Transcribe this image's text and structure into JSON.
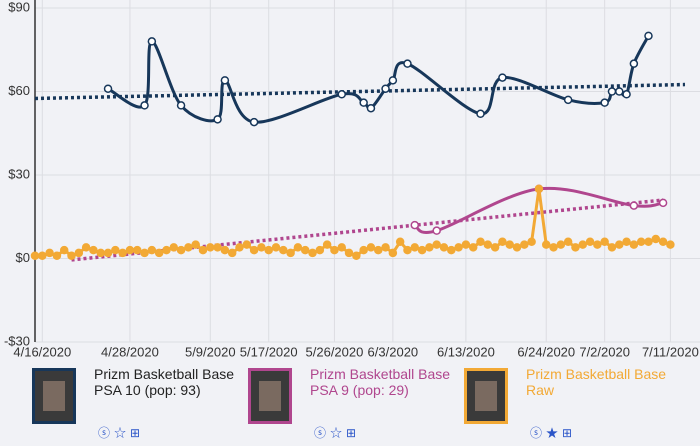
{
  "chart_data": {
    "type": "line",
    "xlim": [
      "2020-04-15",
      "2020-07-13"
    ],
    "xticks": [
      {
        "value": "2020-04-16",
        "label": "4/16/2020"
      },
      {
        "value": "2020-04-28",
        "label": "4/28/2020"
      },
      {
        "value": "2020-05-09",
        "label": "5/9/2020"
      },
      {
        "value": "2020-05-17",
        "label": "5/17/2020"
      },
      {
        "value": "2020-05-26",
        "label": "5/26/2020"
      },
      {
        "value": "2020-06-03",
        "label": "6/3/2020"
      },
      {
        "value": "2020-06-13",
        "label": "6/13/2020"
      },
      {
        "value": "2020-06-24",
        "label": "6/24/2020"
      },
      {
        "value": "2020-07-02",
        "label": "7/2/2020"
      },
      {
        "value": "2020-07-11",
        "label": "7/11/2020"
      }
    ],
    "ylim": [
      -30,
      90
    ],
    "yticks": [
      {
        "value": 90,
        "label": "$90"
      },
      {
        "value": 60,
        "label": "$60"
      },
      {
        "value": 30,
        "label": "$30"
      },
      {
        "value": 0,
        "label": "$0"
      },
      {
        "value": -30,
        "label": "-$30"
      }
    ],
    "grid": true,
    "series": [
      {
        "name": "Prizm Basketball Base PSA 10 (pop: 93)",
        "color": "#17375a",
        "smooth": true,
        "x": [
          "2020-04-25",
          "2020-04-30",
          "2020-05-01",
          "2020-05-05",
          "2020-05-10",
          "2020-05-11",
          "2020-05-15",
          "2020-05-27",
          "2020-05-30",
          "2020-05-31",
          "2020-06-02",
          "2020-06-03",
          "2020-06-05",
          "2020-06-15",
          "2020-06-18",
          "2020-06-27",
          "2020-07-02",
          "2020-07-03",
          "2020-07-04",
          "2020-07-05",
          "2020-07-06",
          "2020-07-08"
        ],
        "values": [
          61,
          55,
          78,
          55,
          50,
          64,
          49,
          59,
          56,
          54,
          61,
          64,
          70,
          52,
          65,
          57,
          56,
          60,
          60,
          59,
          70,
          80
        ],
        "trend": {
          "x": [
            "2020-04-15",
            "2020-07-13"
          ],
          "values": [
            57.5,
            62.5
          ]
        }
      },
      {
        "name": "Prizm Basketball Base PSA 9 (pop: 29)",
        "color": "#b0468e",
        "smooth": true,
        "x": [
          "2020-06-06",
          "2020-06-09",
          "2020-06-23",
          "2020-07-06",
          "2020-07-10"
        ],
        "values": [
          12,
          10,
          25,
          19,
          20
        ],
        "trend": {
          "x": [
            "2020-04-20",
            "2020-07-10"
          ],
          "values": [
            -0.5,
            21
          ]
        }
      },
      {
        "name": "Prizm Basketball Base Raw",
        "color": "#f2a935",
        "smooth": false,
        "x": [
          "2020-04-15",
          "2020-04-16",
          "2020-04-17",
          "2020-04-18",
          "2020-04-19",
          "2020-04-20",
          "2020-04-21",
          "2020-04-22",
          "2020-04-23",
          "2020-04-24",
          "2020-04-25",
          "2020-04-26",
          "2020-04-27",
          "2020-04-28",
          "2020-04-29",
          "2020-04-30",
          "2020-05-01",
          "2020-05-02",
          "2020-05-03",
          "2020-05-04",
          "2020-05-05",
          "2020-05-06",
          "2020-05-07",
          "2020-05-08",
          "2020-05-09",
          "2020-05-10",
          "2020-05-11",
          "2020-05-12",
          "2020-05-13",
          "2020-05-14",
          "2020-05-15",
          "2020-05-16",
          "2020-05-17",
          "2020-05-18",
          "2020-05-19",
          "2020-05-20",
          "2020-05-21",
          "2020-05-22",
          "2020-05-23",
          "2020-05-24",
          "2020-05-25",
          "2020-05-26",
          "2020-05-27",
          "2020-05-28",
          "2020-05-29",
          "2020-05-30",
          "2020-05-31",
          "2020-06-01",
          "2020-06-02",
          "2020-06-03",
          "2020-06-04",
          "2020-06-05",
          "2020-06-06",
          "2020-06-07",
          "2020-06-08",
          "2020-06-09",
          "2020-06-10",
          "2020-06-11",
          "2020-06-12",
          "2020-06-13",
          "2020-06-14",
          "2020-06-15",
          "2020-06-16",
          "2020-06-17",
          "2020-06-18",
          "2020-06-19",
          "2020-06-20",
          "2020-06-21",
          "2020-06-22",
          "2020-06-23",
          "2020-06-24",
          "2020-06-25",
          "2020-06-26",
          "2020-06-27",
          "2020-06-28",
          "2020-06-29",
          "2020-06-30",
          "2020-07-01",
          "2020-07-02",
          "2020-07-03",
          "2020-07-04",
          "2020-07-05",
          "2020-07-06",
          "2020-07-07",
          "2020-07-08",
          "2020-07-09",
          "2020-07-10",
          "2020-07-11"
        ],
        "values": [
          1,
          1,
          2,
          1,
          3,
          1,
          2,
          4,
          3,
          2,
          2,
          3,
          2,
          3,
          3,
          2,
          3,
          2,
          3,
          4,
          3,
          4,
          5,
          3,
          4,
          4,
          3,
          2,
          4,
          5,
          3,
          4,
          3,
          4,
          3,
          2,
          4,
          3,
          2,
          3,
          5,
          3,
          4,
          2,
          1,
          3,
          4,
          3,
          4,
          2,
          6,
          3,
          4,
          3,
          4,
          5,
          4,
          3,
          4,
          5,
          4,
          6,
          5,
          4,
          6,
          5,
          4,
          5,
          6,
          25,
          5,
          4,
          5,
          6,
          4,
          5,
          6,
          5,
          6,
          4,
          5,
          6,
          5,
          6,
          6,
          7,
          6,
          5
        ]
      }
    ]
  }
}
